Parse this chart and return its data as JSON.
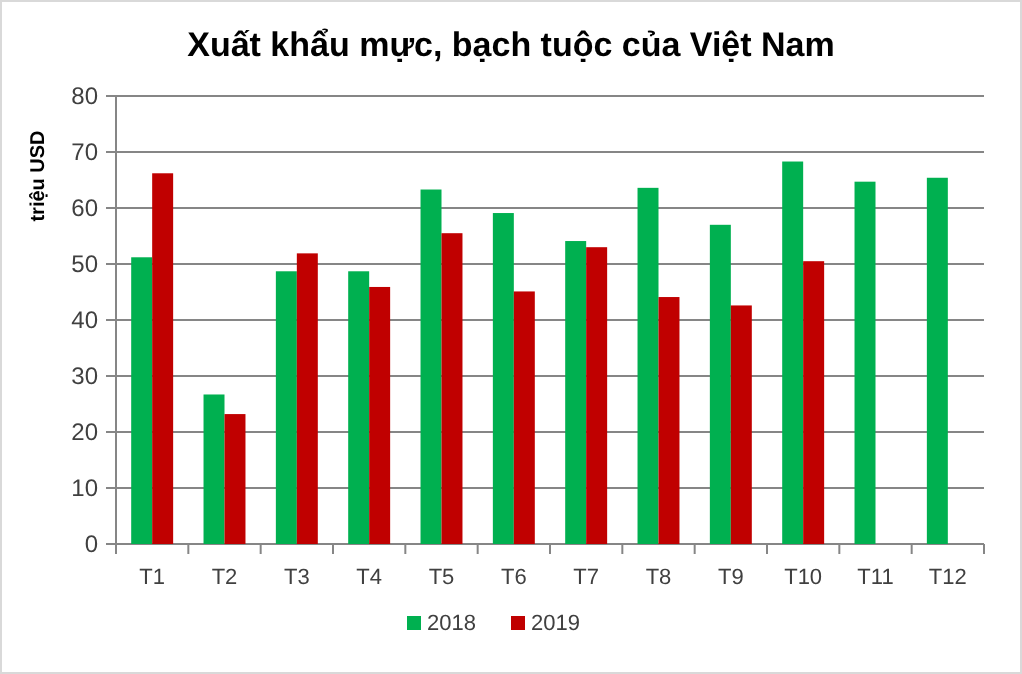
{
  "chart_data": {
    "type": "bar",
    "title": "Xuất khẩu mực, bạch tuộc của Việt Nam",
    "ylabel": "triệu USD",
    "categories": [
      "T1",
      "T2",
      "T3",
      "T4",
      "T5",
      "T6",
      "T7",
      "T8",
      "T9",
      "T10",
      "T11",
      "T12"
    ],
    "series": [
      {
        "name": "2018",
        "color": "#00b050",
        "values": [
          51.2,
          26.7,
          48.7,
          48.7,
          63.3,
          59.1,
          54.1,
          63.6,
          57.0,
          68.3,
          64.7,
          65.4
        ]
      },
      {
        "name": "2019",
        "color": "#c00000",
        "values": [
          66.2,
          23.2,
          51.9,
          45.9,
          55.5,
          45.1,
          53.0,
          44.1,
          42.6,
          50.5,
          null,
          null
        ]
      }
    ],
    "ylim": [
      0,
      80
    ],
    "yticks": [
      0,
      10,
      20,
      30,
      40,
      50,
      60,
      70,
      80
    ],
    "grid": "y",
    "legend": "bottom"
  }
}
